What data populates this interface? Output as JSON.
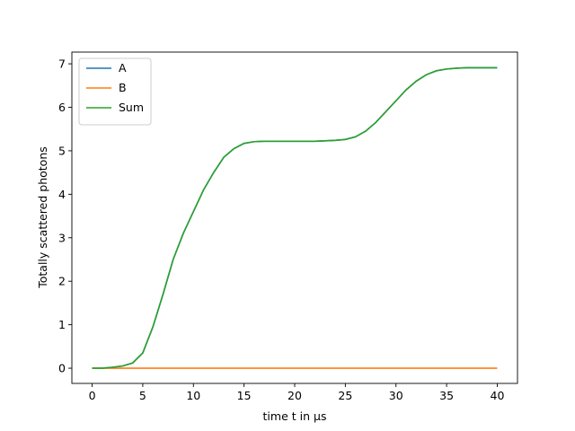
{
  "chart_data": {
    "type": "line",
    "x_label": "time t in μs",
    "y_label": "Totally scattered photons",
    "x": [
      0,
      1,
      2,
      3,
      4,
      5,
      6,
      7,
      8,
      9,
      10,
      11,
      12,
      13,
      14,
      15,
      16,
      17,
      18,
      19,
      20,
      21,
      22,
      23,
      24,
      25,
      26,
      27,
      28,
      29,
      30,
      31,
      32,
      33,
      34,
      35,
      36,
      37,
      38,
      39,
      40
    ],
    "series": [
      {
        "name": "A",
        "color": "#1f77b4",
        "values": [
          0,
          0,
          0.02,
          0.05,
          0.12,
          0.35,
          0.95,
          1.7,
          2.5,
          3.1,
          3.6,
          4.1,
          4.5,
          4.85,
          5.05,
          5.17,
          5.21,
          5.22,
          5.22,
          5.22,
          5.22,
          5.22,
          5.22,
          5.23,
          5.24,
          5.26,
          5.32,
          5.45,
          5.65,
          5.9,
          6.15,
          6.4,
          6.6,
          6.75,
          6.84,
          6.88,
          6.9,
          6.91,
          6.91,
          6.91,
          6.91
        ]
      },
      {
        "name": "B",
        "color": "#ff7f0e",
        "values": [
          0,
          0,
          0,
          0,
          0,
          0,
          0,
          0,
          0,
          0,
          0,
          0,
          0,
          0,
          0,
          0,
          0,
          0,
          0,
          0,
          0,
          0,
          0,
          0,
          0,
          0,
          0,
          0,
          0,
          0,
          0,
          0,
          0,
          0,
          0,
          0,
          0,
          0,
          0,
          0,
          0
        ]
      },
      {
        "name": "Sum",
        "color": "#2ca02c",
        "values": [
          0,
          0,
          0.02,
          0.05,
          0.12,
          0.35,
          0.95,
          1.7,
          2.5,
          3.1,
          3.6,
          4.1,
          4.5,
          4.85,
          5.05,
          5.17,
          5.21,
          5.22,
          5.22,
          5.22,
          5.22,
          5.22,
          5.22,
          5.23,
          5.24,
          5.26,
          5.32,
          5.45,
          5.65,
          5.9,
          6.15,
          6.4,
          6.6,
          6.75,
          6.84,
          6.88,
          6.9,
          6.91,
          6.91,
          6.91,
          6.91
        ]
      }
    ],
    "xlim": [
      -2,
      42
    ],
    "xticks": [
      0,
      5,
      10,
      15,
      20,
      25,
      30,
      35,
      40
    ],
    "ylim": [
      -0.35,
      7.27
    ],
    "yticks": [
      0,
      1,
      2,
      3,
      4,
      5,
      6,
      7
    ],
    "legend": "upper left"
  }
}
